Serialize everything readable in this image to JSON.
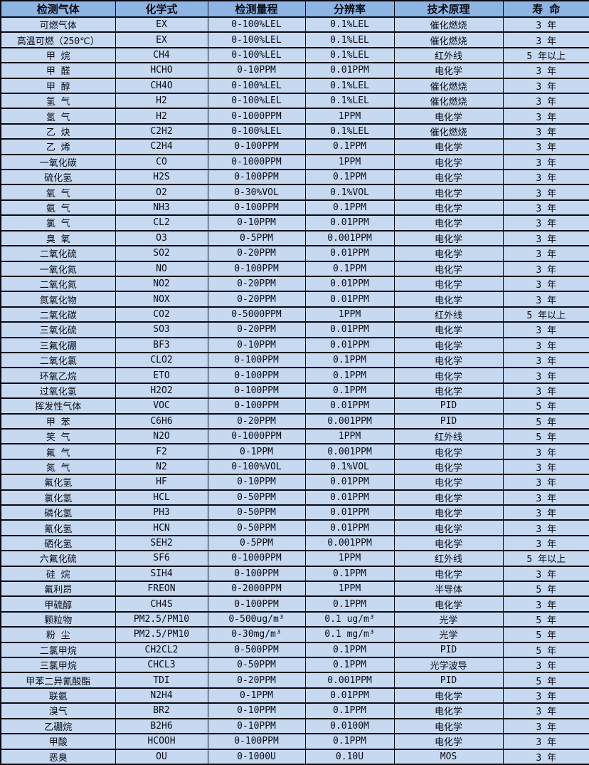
{
  "table": {
    "colors": {
      "header_bg": "#8db4e2",
      "row_bg": "#c6d9f1",
      "border": "#0a0a12",
      "text": "#0a0a14"
    },
    "headers": [
      "检测气体",
      "化学式",
      "检测量程",
      "分辨率",
      "技术原理",
      "寿  命"
    ],
    "column_keys": [
      "gas-name",
      "chemical-formula",
      "detection-range",
      "resolution",
      "technology-principle",
      "lifespan"
    ],
    "rows": [
      [
        "可燃气体",
        "EX",
        "0-100%LEL",
        "0.1%LEL",
        "催化燃烧",
        "3 年"
      ],
      [
        "高温可燃（250℃）",
        "EX",
        "0-100%LEL",
        "0.1%LEL",
        "催化燃烧",
        "3 年"
      ],
      [
        "甲 烷",
        "CH4",
        "0-100%LEL",
        "0.1%LEL",
        "红外线",
        "5 年以上"
      ],
      [
        "甲 醛",
        "HCHO",
        "0-10PPM",
        "0.01PPM",
        "电化学",
        "3 年"
      ],
      [
        "甲 醇",
        "CH4O",
        "0-100%LEL",
        "0.1%LEL",
        "催化燃烧",
        "3 年"
      ],
      [
        "氢 气",
        "H2",
        "0-100%LEL",
        "0.1%LEL",
        "催化燃烧",
        "3 年"
      ],
      [
        "氢 气",
        "H2",
        "0-1000PPM",
        "1PPM",
        "电化学",
        "3 年"
      ],
      [
        "乙 炔",
        "C2H2",
        "0-100%LEL",
        "0.1%LEL",
        "催化燃烧",
        "3 年"
      ],
      [
        "乙 烯",
        "C2H4",
        "0-100PPM",
        "0.1PPM",
        "电化学",
        "3 年"
      ],
      [
        "一氧化碳",
        "CO",
        "0-1000PPM",
        "1PPM",
        "电化学",
        "3 年"
      ],
      [
        "硫化氢",
        "H2S",
        "0-100PPM",
        "0.1PPM",
        "电化学",
        "3 年"
      ],
      [
        "氧 气",
        "O2",
        "0-30%VOL",
        "0.1%VOL",
        "电化学",
        "3 年"
      ],
      [
        "氨 气",
        "NH3",
        "0-100PPM",
        "0.1PPM",
        "电化学",
        "3 年"
      ],
      [
        "氯 气",
        "CL2",
        "0-10PPM",
        "0.01PPM",
        "电化学",
        "3 年"
      ],
      [
        "臭 氧",
        "O3",
        "0-5PPM",
        "0.001PPM",
        "电化学",
        "3 年"
      ],
      [
        "二氧化硫",
        "SO2",
        "0-20PPM",
        "0.01PPM",
        "电化学",
        "3 年"
      ],
      [
        "一氧化氮",
        "NO",
        "0-100PPM",
        "0.1PPM",
        "电化学",
        "3 年"
      ],
      [
        "二氧化氮",
        "NO2",
        "0-20PPM",
        "0.01PPM",
        "电化学",
        "3 年"
      ],
      [
        "氮氧化物",
        "NOX",
        "0-20PPM",
        "0.01PPM",
        "电化学",
        "3 年"
      ],
      [
        "二氧化碳",
        "CO2",
        "0-5000PPM",
        "1PPM",
        "红外线",
        "5 年以上"
      ],
      [
        "三氧化硫",
        "SO3",
        "0-20PPM",
        "0.01PPM",
        "电化学",
        "3 年"
      ],
      [
        "三氟化硼",
        "BF3",
        "0-10PPM",
        "0.01PPM",
        "电化学",
        "3 年"
      ],
      [
        "二氧化氯",
        "CLO2",
        "0-100PPM",
        "0.1PPM",
        "电化学",
        "3 年"
      ],
      [
        "环氧乙烷",
        "ETO",
        "0-100PPM",
        "0.1PPM",
        "电化学",
        "3 年"
      ],
      [
        "过氧化氢",
        "H2O2",
        "0-100PPM",
        "0.1PPM",
        "电化学",
        "3 年"
      ],
      [
        "挥发性气体",
        "VOC",
        "0-100PPM",
        "0.01PPM",
        "PID",
        "5 年"
      ],
      [
        "甲 苯",
        "C6H6",
        "0-20PPM",
        "0.001PPM",
        "PID",
        "5 年"
      ],
      [
        "笑 气",
        "N2O",
        "0-1000PPM",
        "1PPM",
        "红外线",
        "5 年"
      ],
      [
        "氟 气",
        "F2",
        "0-1PPM",
        "0.001PPM",
        "电化学",
        "3 年"
      ],
      [
        "氮 气",
        "N2",
        "0-100%VOL",
        "0.1%VOL",
        "电化学",
        "3 年"
      ],
      [
        "氟化氢",
        "HF",
        "0-10PPM",
        "0.01PPM",
        "电化学",
        "3 年"
      ],
      [
        "氯化氢",
        "HCL",
        "0-50PPM",
        "0.01PPM",
        "电化学",
        "3 年"
      ],
      [
        "磷化氢",
        "PH3",
        "0-50PPM",
        "0.01PPM",
        "电化学",
        "3 年"
      ],
      [
        "氰化氢",
        "HCN",
        "0-50PPM",
        "0.01PPM",
        "电化学",
        "3 年"
      ],
      [
        "硒化氢",
        "SEH2",
        "0-5PPM",
        "0.001PPM",
        "电化学",
        "3 年"
      ],
      [
        "六氟化硫",
        "SF6",
        "0-1000PPM",
        "1PPM",
        "红外线",
        "5 年以上"
      ],
      [
        "硅 烷",
        "SIH4",
        "0-100PPM",
        "0.1PPM",
        "电化学",
        "3 年"
      ],
      [
        "氟利昂",
        "FREON",
        "0-2000PPM",
        "1PPM",
        "半导体",
        "5 年"
      ],
      [
        "甲硫醇",
        "CH4S",
        "0-100PPM",
        "0.1PPM",
        "电化学",
        "3 年"
      ],
      [
        "颗粒物",
        "PM2.5/PM10",
        "0-500ug/m³",
        "0.1 ug/m³",
        "光学",
        "5 年"
      ],
      [
        "粉 尘",
        "PM2.5/PM10",
        "0-30mg/m³",
        "0.1 mg/m³",
        "光学",
        "5 年"
      ],
      [
        "二氯甲烷",
        "CH2CL2",
        "0-500PPM",
        "0.1PPM",
        "PID",
        "5 年"
      ],
      [
        "三氯甲烷",
        "CHCL3",
        "0-50PPM",
        "0.1PPM",
        "光学波导",
        "3 年"
      ],
      [
        "甲苯二异氰酸酯",
        "TDI",
        "0-20PPM",
        "0.001PPM",
        "PID",
        "5 年"
      ],
      [
        "联氨",
        "N2H4",
        "0-1PPM",
        "0.01PPM",
        "电化学",
        "3 年"
      ],
      [
        "溴气",
        "BR2",
        "0-10PPM",
        "0.1PPM",
        "电化学",
        "3 年"
      ],
      [
        "乙硼烷",
        "B2H6",
        "0-10PPM",
        "0.0100M",
        "电化学",
        "3 年"
      ],
      [
        "甲酸",
        "HCOOH",
        "0-100PPM",
        "0.1PPM",
        "电化学",
        "3 年"
      ],
      [
        "恶臭",
        "OU",
        "0-1000U",
        "0.10U",
        "MOS",
        "3 年"
      ]
    ]
  }
}
